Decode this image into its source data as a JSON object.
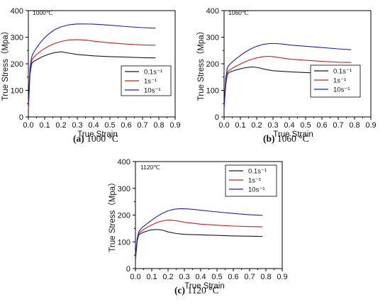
{
  "figure": {
    "series_labels": [
      "0.1s⁻¹",
      "1s⁻¹",
      "10s⁻¹"
    ],
    "series_colors": [
      "#1a1a1a",
      "#c8201e",
      "#1f1fb4"
    ]
  },
  "chart_data": [
    {
      "type": "line",
      "caption_letter": "(a)",
      "caption_rest": " 1000 °C",
      "temperature_label": "1000℃",
      "xlabel": "True Strain",
      "ylabel": "True Stress（Mpa）",
      "xlim": [
        0,
        0.9
      ],
      "ylim": [
        0,
        400
      ],
      "xticks": [
        0.0,
        0.1,
        0.2,
        0.3,
        0.4,
        0.5,
        0.6,
        0.7,
        0.8,
        0.9
      ],
      "yticks": [
        0,
        100,
        200,
        300,
        400
      ],
      "legend_position": "right-middle",
      "series": [
        {
          "name": "0.1s⁻¹",
          "color": "#1a1a1a",
          "x": [
            0,
            0.01,
            0.02,
            0.03,
            0.05,
            0.08,
            0.12,
            0.16,
            0.2,
            0.25,
            0.3,
            0.4,
            0.5,
            0.6,
            0.7,
            0.78
          ],
          "y": [
            30,
            160,
            200,
            208,
            215,
            225,
            235,
            242,
            245,
            240,
            235,
            230,
            227,
            225,
            223,
            222
          ]
        },
        {
          "name": "1s⁻¹",
          "color": "#c8201e",
          "x": [
            0,
            0.01,
            0.02,
            0.03,
            0.05,
            0.08,
            0.12,
            0.16,
            0.2,
            0.25,
            0.3,
            0.35,
            0.4,
            0.5,
            0.6,
            0.7,
            0.78
          ],
          "y": [
            30,
            170,
            212,
            222,
            235,
            250,
            265,
            276,
            284,
            290,
            291,
            289,
            285,
            279,
            274,
            271,
            270
          ]
        },
        {
          "name": "10s⁻¹",
          "color": "#1f1fb4",
          "x": [
            0,
            0.01,
            0.02,
            0.03,
            0.05,
            0.08,
            0.12,
            0.16,
            0.2,
            0.25,
            0.3,
            0.35,
            0.4,
            0.5,
            0.6,
            0.7,
            0.78
          ],
          "y": [
            40,
            185,
            225,
            240,
            260,
            285,
            310,
            328,
            339,
            347,
            350,
            350,
            349,
            345,
            340,
            336,
            334
          ]
        }
      ]
    },
    {
      "type": "line",
      "caption_letter": "(b)",
      "caption_rest": " 1060 °C",
      "temperature_label": "1060℃",
      "xlabel": "True Strain",
      "ylabel": "True Stress（Mpa）",
      "xlim": [
        0,
        0.9
      ],
      "ylim": [
        0,
        400
      ],
      "xticks": [
        0.0,
        0.1,
        0.2,
        0.3,
        0.4,
        0.5,
        0.6,
        0.7,
        0.8,
        0.9
      ],
      "yticks": [
        0,
        100,
        200,
        300,
        400
      ],
      "legend_position": "right-middle",
      "series": [
        {
          "name": "0.1s⁻¹",
          "color": "#1a1a1a",
          "x": [
            0,
            0.01,
            0.02,
            0.03,
            0.05,
            0.08,
            0.12,
            0.15,
            0.18,
            0.22,
            0.26,
            0.3,
            0.4,
            0.5,
            0.6,
            0.7,
            0.78
          ],
          "y": [
            30,
            120,
            160,
            167,
            172,
            178,
            184,
            187,
            188,
            184,
            178,
            174,
            170,
            167,
            165,
            163,
            162
          ]
        },
        {
          "name": "1s⁻¹",
          "color": "#c8201e",
          "x": [
            0,
            0.01,
            0.02,
            0.03,
            0.05,
            0.08,
            0.12,
            0.16,
            0.2,
            0.24,
            0.27,
            0.3,
            0.35,
            0.4,
            0.5,
            0.6,
            0.7,
            0.78
          ],
          "y": [
            35,
            130,
            168,
            175,
            183,
            193,
            205,
            215,
            222,
            227,
            228,
            227,
            222,
            218,
            213,
            209,
            206,
            205
          ]
        },
        {
          "name": "10s⁻¹",
          "color": "#1f1fb4",
          "x": [
            0,
            0.01,
            0.02,
            0.03,
            0.05,
            0.08,
            0.12,
            0.16,
            0.2,
            0.24,
            0.28,
            0.32,
            0.36,
            0.4,
            0.5,
            0.6,
            0.7,
            0.78
          ],
          "y": [
            40,
            145,
            185,
            195,
            207,
            222,
            240,
            255,
            266,
            273,
            276,
            276,
            274,
            271,
            266,
            261,
            256,
            253
          ]
        }
      ]
    },
    {
      "type": "line",
      "caption_letter": "(c)",
      "caption_rest": " 1120 °C",
      "temperature_label": "1120℃",
      "xlabel": "True Strain",
      "ylabel": "True Stress（Mpa）",
      "xlim": [
        0,
        0.9
      ],
      "ylim": [
        0,
        400
      ],
      "xticks": [
        0.0,
        0.1,
        0.2,
        0.3,
        0.4,
        0.5,
        0.6,
        0.7,
        0.8,
        0.9
      ],
      "yticks": [
        0,
        100,
        200,
        300,
        400
      ],
      "legend_position": "top-right",
      "series": [
        {
          "name": "0.1s⁻¹",
          "color": "#1a1a1a",
          "x": [
            0,
            0.01,
            0.02,
            0.03,
            0.05,
            0.08,
            0.1,
            0.12,
            0.14,
            0.17,
            0.2,
            0.25,
            0.3,
            0.4,
            0.5,
            0.6,
            0.7,
            0.78
          ],
          "y": [
            30,
            100,
            125,
            130,
            136,
            142,
            145,
            146,
            146,
            143,
            137,
            131,
            128,
            126,
            124,
            122,
            121,
            120
          ]
        },
        {
          "name": "1s⁻¹",
          "color": "#c8201e",
          "x": [
            0,
            0.01,
            0.02,
            0.03,
            0.05,
            0.08,
            0.12,
            0.15,
            0.18,
            0.2,
            0.22,
            0.26,
            0.3,
            0.4,
            0.5,
            0.6,
            0.7,
            0.78
          ],
          "y": [
            35,
            105,
            130,
            137,
            146,
            157,
            169,
            176,
            180,
            181,
            181,
            178,
            173,
            166,
            162,
            159,
            157,
            156
          ]
        },
        {
          "name": "10s⁻¹",
          "color": "#1f1fb4",
          "x": [
            0,
            0.01,
            0.02,
            0.03,
            0.05,
            0.08,
            0.12,
            0.16,
            0.2,
            0.24,
            0.28,
            0.32,
            0.36,
            0.4,
            0.5,
            0.6,
            0.7,
            0.78
          ],
          "y": [
            40,
            110,
            137,
            146,
            158,
            172,
            190,
            205,
            216,
            222,
            224,
            223,
            221,
            218,
            212,
            206,
            201,
            199
          ]
        }
      ]
    }
  ]
}
